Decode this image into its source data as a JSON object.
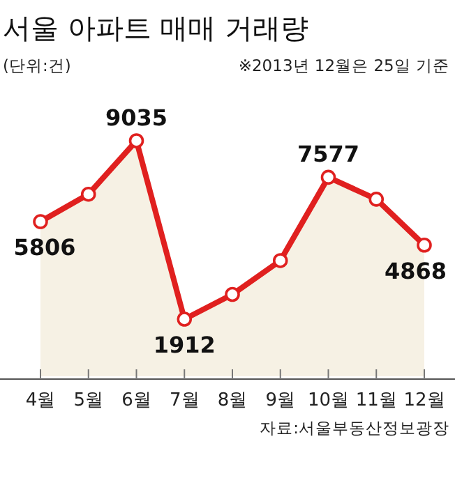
{
  "chart_data": {
    "type": "area",
    "title": "서울 아파트 매매 거래량",
    "subtitle": "(단위:건)",
    "annotations": [
      "※2013년 12월은 25일 기준",
      "자료:서울부동산정보광장"
    ],
    "categories": [
      "4월",
      "5월",
      "6월",
      "7월",
      "8월",
      "9월",
      "10월",
      "11월",
      "12월"
    ],
    "series": [
      {
        "color": "#e0201f",
        "values": [
          5806,
          6900,
          9035,
          1912,
          2900,
          4250,
          7577,
          6700,
          4868
        ],
        "value_labels": [
          "5806",
          null,
          "9035",
          "1912",
          null,
          null,
          "7577",
          null,
          "4868"
        ]
      }
    ],
    "marker": "circle"
  }
}
